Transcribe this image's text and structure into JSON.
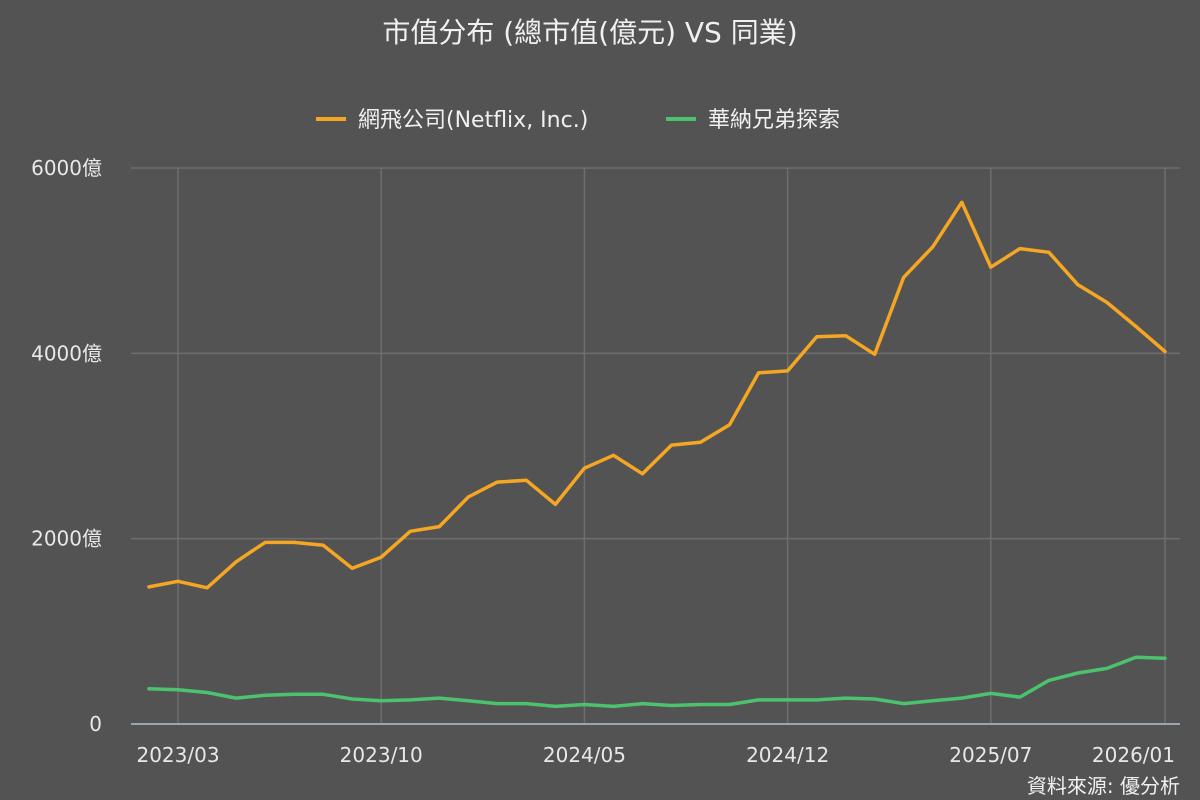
{
  "chart_data": {
    "type": "line",
    "title": "市值分布 (總市值(億元) VS 同業)",
    "x": [
      "2023/02",
      "2023/03",
      "2023/04",
      "2023/05",
      "2023/06",
      "2023/07",
      "2023/08",
      "2023/09",
      "2023/10",
      "2023/11",
      "2023/12",
      "2024/01",
      "2024/02",
      "2024/03",
      "2024/04",
      "2024/05",
      "2024/06",
      "2024/07",
      "2024/08",
      "2024/09",
      "2024/10",
      "2024/11",
      "2024/12",
      "2025/01",
      "2025/02",
      "2025/03",
      "2025/04",
      "2025/05",
      "2025/06",
      "2025/07",
      "2025/08",
      "2025/09",
      "2025/10",
      "2025/11",
      "2025/12",
      "2026/01"
    ],
    "x_tick_labels": [
      "2023/03",
      "2023/10",
      "2024/05",
      "2024/12",
      "2025/07",
      "2026/01"
    ],
    "series": [
      {
        "name": "網飛公司(Netflix, Inc.)",
        "color": "#f5a623",
        "values": [
          1480,
          1540,
          1470,
          1750,
          1960,
          1960,
          1930,
          1680,
          1800,
          2080,
          2130,
          2450,
          2610,
          2630,
          2370,
          2760,
          2900,
          2700,
          3010,
          3040,
          3230,
          3790,
          3810,
          4180,
          4190,
          3990,
          4820,
          5150,
          5630,
          4930,
          5130,
          5090,
          4740,
          4550,
          4290,
          4020
        ]
      },
      {
        "name": "華納兄弟探索",
        "color": "#4cc26e",
        "values": [
          380,
          370,
          340,
          280,
          310,
          320,
          320,
          270,
          250,
          260,
          280,
          250,
          220,
          220,
          190,
          210,
          190,
          220,
          200,
          210,
          210,
          260,
          260,
          260,
          280,
          270,
          220,
          250,
          280,
          330,
          290,
          470,
          550,
          600,
          720,
          710
        ]
      }
    ],
    "y_tick_labels": [
      "0",
      "2000億",
      "4000億",
      "6000億"
    ],
    "ylim": [
      0,
      6000
    ],
    "y_ticks": [
      0,
      2000,
      4000,
      6000
    ],
    "grid": true,
    "legend_position": "top-center",
    "source": "資料來源: 優分析"
  }
}
